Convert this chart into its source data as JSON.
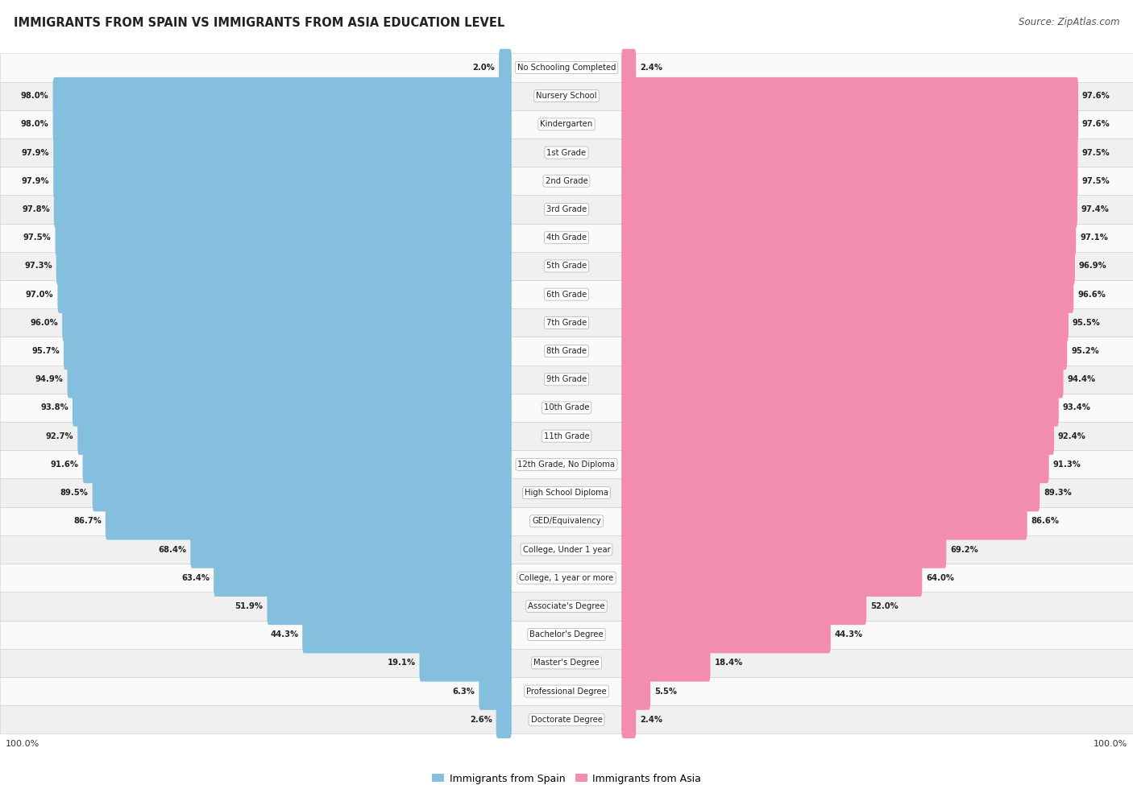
{
  "title": "IMMIGRANTS FROM SPAIN VS IMMIGRANTS FROM ASIA EDUCATION LEVEL",
  "source": "Source: ZipAtlas.com",
  "categories": [
    "No Schooling Completed",
    "Nursery School",
    "Kindergarten",
    "1st Grade",
    "2nd Grade",
    "3rd Grade",
    "4th Grade",
    "5th Grade",
    "6th Grade",
    "7th Grade",
    "8th Grade",
    "9th Grade",
    "10th Grade",
    "11th Grade",
    "12th Grade, No Diploma",
    "High School Diploma",
    "GED/Equivalency",
    "College, Under 1 year",
    "College, 1 year or more",
    "Associate's Degree",
    "Bachelor's Degree",
    "Master's Degree",
    "Professional Degree",
    "Doctorate Degree"
  ],
  "spain_values": [
    2.0,
    98.0,
    98.0,
    97.9,
    97.9,
    97.8,
    97.5,
    97.3,
    97.0,
    96.0,
    95.7,
    94.9,
    93.8,
    92.7,
    91.6,
    89.5,
    86.7,
    68.4,
    63.4,
    51.9,
    44.3,
    19.1,
    6.3,
    2.6
  ],
  "asia_values": [
    2.4,
    97.6,
    97.6,
    97.5,
    97.5,
    97.4,
    97.1,
    96.9,
    96.6,
    95.5,
    95.2,
    94.4,
    93.4,
    92.4,
    91.3,
    89.3,
    86.6,
    69.2,
    64.0,
    52.0,
    44.3,
    18.4,
    5.5,
    2.4
  ],
  "spain_color": "#85bfde",
  "asia_color": "#f28db0",
  "bg_color": "#ffffff",
  "row_color_even": "#f0f0f0",
  "row_color_odd": "#fafafa",
  "legend_spain": "Immigrants from Spain",
  "legend_asia": "Immigrants from Asia",
  "figsize": [
    14.06,
    9.75
  ]
}
